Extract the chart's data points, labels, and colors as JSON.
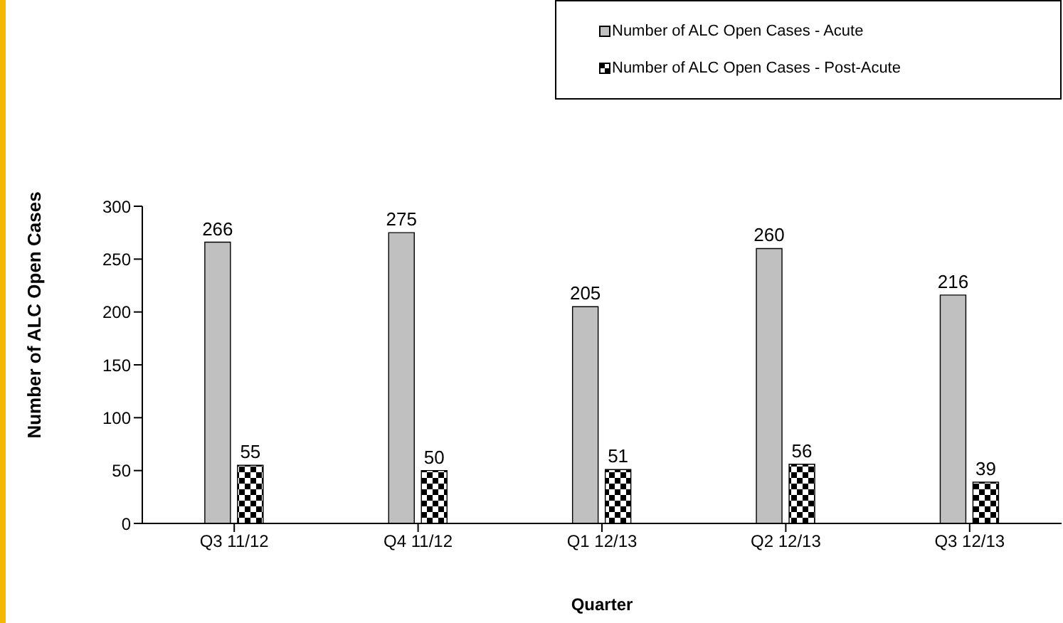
{
  "chart_data": {
    "type": "bar",
    "xlabel": "Quarter",
    "ylabel": "Number of ALC Open Cases",
    "categories": [
      "Q3 11/12",
      "Q4 11/12",
      "Q1 12/13",
      "Q2 12/13",
      "Q3 12/13"
    ],
    "series": [
      {
        "name": "Number of ALC Open Cases - Acute",
        "color": "#c0c0c0",
        "values": [
          266,
          275,
          205,
          260,
          216
        ]
      },
      {
        "name": "Number of ALC Open Cases - Post-Acute",
        "color": "#000000",
        "values": [
          55,
          50,
          51,
          56,
          39
        ]
      }
    ],
    "ylim": [
      0,
      300
    ],
    "yticks": [
      0,
      50,
      100,
      150,
      200,
      250,
      300
    ],
    "grid": false,
    "legend": "top right",
    "data_labels": true
  }
}
